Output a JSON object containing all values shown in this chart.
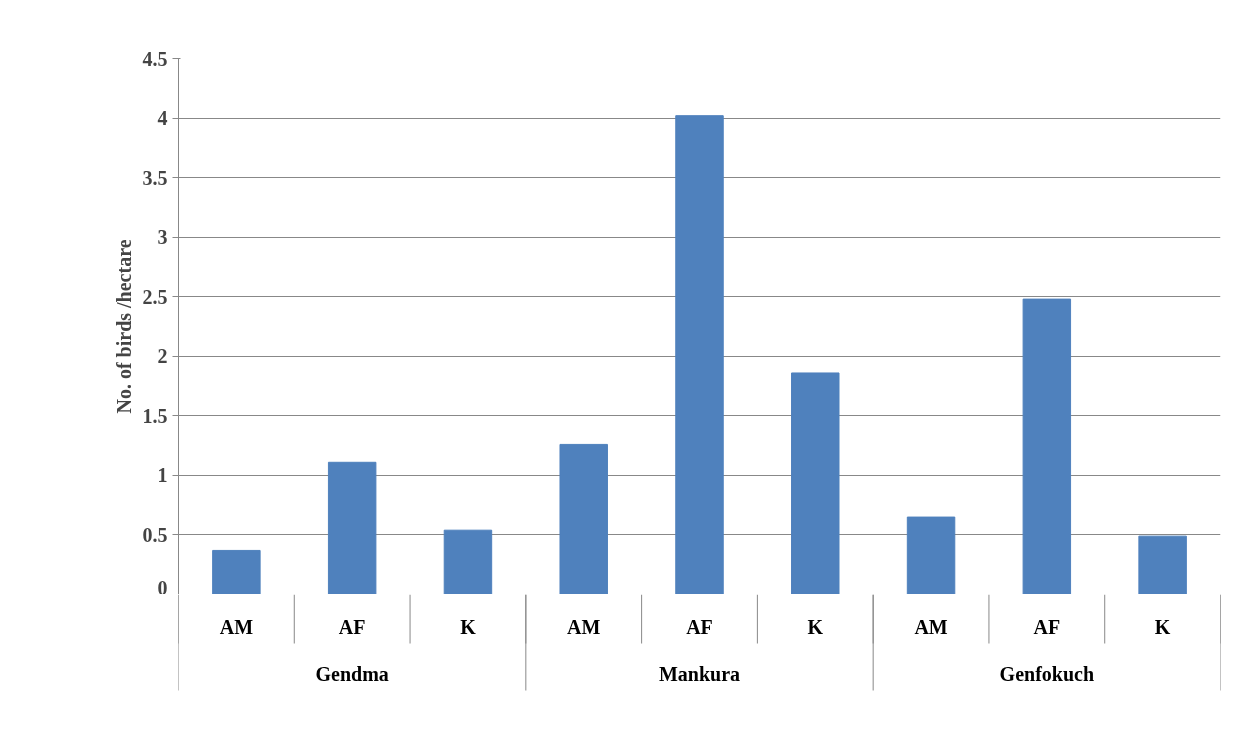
{
  "chart_data": {
    "type": "bar",
    "categories": [
      "AM",
      "AF",
      "K",
      "AM",
      "AF",
      "K",
      "AM",
      "AF",
      "K"
    ],
    "values": [
      0.37,
      1.11,
      0.54,
      1.26,
      4.02,
      1.86,
      0.65,
      2.48,
      0.49
    ],
    "color": "#4f81bd",
    "ylabel": "No. of birds /hectare",
    "annotations": [
      "Gendma",
      "Mankura",
      "Genfokuch"
    ],
    "ylim": [
      0,
      4.5
    ],
    "yticks": [
      0,
      0.5,
      1,
      1.5,
      2,
      2.5,
      3,
      3.5,
      4,
      4.5
    ],
    "grid": "y"
  }
}
